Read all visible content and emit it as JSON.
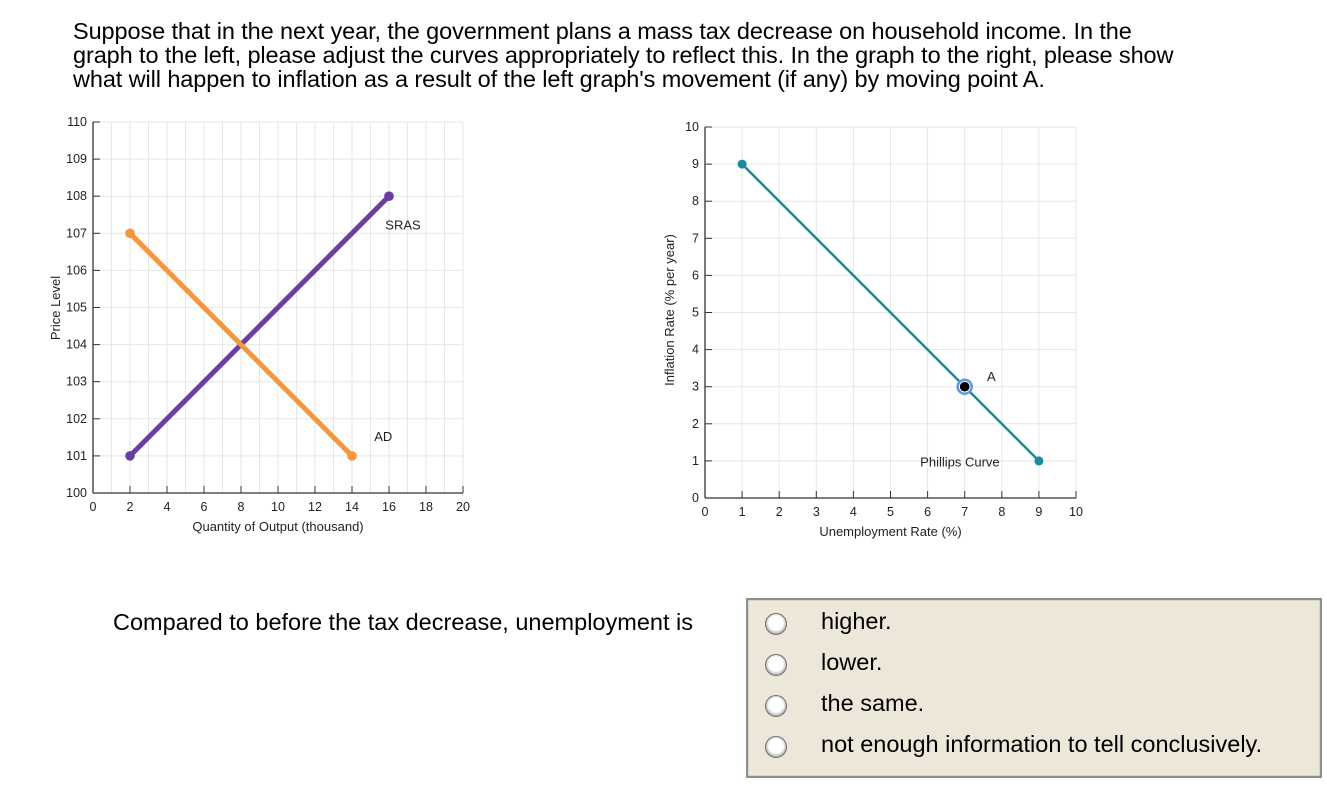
{
  "prompt": {
    "lines": [
      "Suppose that in the next year, the government plans a mass tax decrease on household income. In the",
      "graph to the left, please adjust the curves appropriately to reflect this. In the graph to the right, please show",
      "what will happen to inflation as a result of the left graph's movement (if any) by moving point A."
    ]
  },
  "question": {
    "text": "Compared to before the tax decrease, unemployment is",
    "options": [
      {
        "label": "higher.",
        "selected": false
      },
      {
        "label": "lower.",
        "selected": false
      },
      {
        "label": "the same.",
        "selected": false
      },
      {
        "label": "not enough information to tell conclusively.",
        "selected": false
      }
    ]
  },
  "colors": {
    "sras": "#6b3fa0",
    "ad": "#f7953a",
    "phillips": "#1a8a9e",
    "point_a_fill": "#000000",
    "point_a_ring": "#5b9bd8",
    "grid": "#e6e6e6",
    "axis": "#333333",
    "choices_bg": "#ece7d9"
  },
  "chart_data": [
    {
      "type": "line",
      "title": "",
      "xlabel": "Quantity of Output (thousand)",
      "ylabel": "Price Level",
      "xlim": [
        0,
        20
      ],
      "ylim": [
        100,
        110
      ],
      "x_ticks": [
        "0",
        "2",
        "4",
        "6",
        "8",
        "10",
        "12",
        "14",
        "16",
        "18",
        "20"
      ],
      "y_ticks": [
        "100",
        "101",
        "102",
        "103",
        "104",
        "105",
        "106",
        "107",
        "108",
        "109",
        "110"
      ],
      "grid": true,
      "series": [
        {
          "name": "SRAS",
          "points": [
            [
              2,
              101
            ],
            [
              16,
              108
            ]
          ],
          "label_pos": [
            15.8,
            107.1
          ]
        },
        {
          "name": "AD",
          "points": [
            [
              2,
              107
            ],
            [
              14,
              101
            ]
          ],
          "label_pos": [
            15.2,
            101.4
          ]
        }
      ]
    },
    {
      "type": "line",
      "title": "",
      "xlabel": "Unemployment Rate (%)",
      "ylabel": "Inflation Rate (% per year)",
      "xlim": [
        0,
        10
      ],
      "ylim": [
        0,
        10
      ],
      "x_ticks": [
        "0",
        "1",
        "2",
        "3",
        "4",
        "5",
        "6",
        "7",
        "8",
        "9",
        "10"
      ],
      "y_ticks": [
        "0",
        "1",
        "2",
        "3",
        "4",
        "5",
        "6",
        "7",
        "8",
        "9",
        "10"
      ],
      "grid": true,
      "series": [
        {
          "name": "Phillips Curve",
          "points": [
            [
              1,
              9
            ],
            [
              9,
              1
            ]
          ],
          "label_pos": [
            5.8,
            0.85
          ]
        }
      ],
      "points": [
        {
          "name": "A",
          "x": 7,
          "y": 3,
          "label_pos": [
            7.6,
            3.15
          ]
        }
      ]
    }
  ]
}
